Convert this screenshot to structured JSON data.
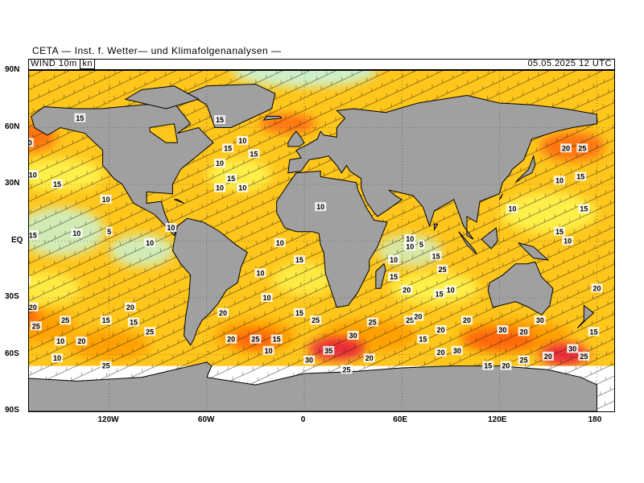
{
  "header": {
    "title": "CETA — Inst. f. Wetter— und Klimafolgenanalysen —",
    "field": "WIND  10m",
    "unit": "kn",
    "datetime": "05.05.2025  12  UTC"
  },
  "axes": {
    "lat_labels": [
      "90N",
      "60N",
      "30N",
      "EQ",
      "30S",
      "60S",
      "90S"
    ],
    "lon_labels": [
      "120W",
      "60W",
      "0",
      "60E",
      "120E",
      "180"
    ]
  },
  "contour_labels": [
    {
      "v": "15",
      "lon": -175,
      "lat": 62
    },
    {
      "v": "20",
      "lon": -170,
      "lat": 52
    },
    {
      "v": "10",
      "lon": -167,
      "lat": 35
    },
    {
      "v": "15",
      "lon": -152,
      "lat": 30
    },
    {
      "v": "15",
      "lon": -167,
      "lat": 3
    },
    {
      "v": "10",
      "lon": -140,
      "lat": 4
    },
    {
      "v": "5",
      "lon": -120,
      "lat": 5
    },
    {
      "v": "10",
      "lon": -95,
      "lat": -1
    },
    {
      "v": "10",
      "lon": -82,
      "lat": 7
    },
    {
      "v": "15",
      "lon": -172,
      "lat": -21
    },
    {
      "v": "20",
      "lon": -167,
      "lat": -35
    },
    {
      "v": "25",
      "lon": -165,
      "lat": -45
    },
    {
      "v": "25",
      "lon": -147,
      "lat": -42
    },
    {
      "v": "15",
      "lon": -122,
      "lat": -42
    },
    {
      "v": "20",
      "lon": -107,
      "lat": -35
    },
    {
      "v": "15",
      "lon": -105,
      "lat": -43
    },
    {
      "v": "25",
      "lon": -95,
      "lat": -48
    },
    {
      "v": "10",
      "lon": -150,
      "lat": -53
    },
    {
      "v": "20",
      "lon": -137,
      "lat": -53
    },
    {
      "v": "25",
      "lon": -122,
      "lat": -66
    },
    {
      "v": "10",
      "lon": -152,
      "lat": -62
    },
    {
      "v": "20",
      "lon": -45,
      "lat": -52
    },
    {
      "v": "25",
      "lon": -30,
      "lat": -52
    },
    {
      "v": "15",
      "lon": -17,
      "lat": -52
    },
    {
      "v": "10",
      "lon": -22,
      "lat": -58
    },
    {
      "v": "20",
      "lon": -50,
      "lat": -38
    },
    {
      "v": "15",
      "lon": -3,
      "lat": -38
    },
    {
      "v": "10",
      "lon": -23,
      "lat": -30
    },
    {
      "v": "10",
      "lon": -15,
      "lat": -1
    },
    {
      "v": "15",
      "lon": -3,
      "lat": -10
    },
    {
      "v": "10",
      "lon": -27,
      "lat": -17
    },
    {
      "v": "25",
      "lon": 7,
      "lat": -42
    },
    {
      "v": "30",
      "lon": 30,
      "lat": -50
    },
    {
      "v": "25",
      "lon": 42,
      "lat": -43
    },
    {
      "v": "35",
      "lon": 15,
      "lat": -58
    },
    {
      "v": "30",
      "lon": 3,
      "lat": -63
    },
    {
      "v": "20",
      "lon": 40,
      "lat": -62
    },
    {
      "v": "25",
      "lon": 26,
      "lat": -68
    },
    {
      "v": "25",
      "lon": 65,
      "lat": -42
    },
    {
      "v": "20",
      "lon": 70,
      "lat": -40
    },
    {
      "v": "15",
      "lon": 73,
      "lat": -52
    },
    {
      "v": "20",
      "lon": 84,
      "lat": -47
    },
    {
      "v": "30",
      "lon": 94,
      "lat": -58
    },
    {
      "v": "20",
      "lon": 84,
      "lat": -59
    },
    {
      "v": "20",
      "lon": 100,
      "lat": -42
    },
    {
      "v": "30",
      "lon": 122,
      "lat": -47
    },
    {
      "v": "20",
      "lon": 135,
      "lat": -48
    },
    {
      "v": "30",
      "lon": 145,
      "lat": -42
    },
    {
      "v": "20",
      "lon": 150,
      "lat": -61
    },
    {
      "v": "25",
      "lon": 135,
      "lat": -63
    },
    {
      "v": "15",
      "lon": 113,
      "lat": -66
    },
    {
      "v": "20",
      "lon": 124,
      "lat": -66
    },
    {
      "v": "30",
      "lon": 165,
      "lat": -57
    },
    {
      "v": "25",
      "lon": 172,
      "lat": -61
    },
    {
      "v": "15",
      "lon": 178,
      "lat": -48
    },
    {
      "v": "20",
      "lon": 180,
      "lat": -25
    },
    {
      "v": "25",
      "lon": 85,
      "lat": -15
    },
    {
      "v": "15",
      "lon": 83,
      "lat": -28
    },
    {
      "v": "10",
      "lon": 90,
      "lat": -26
    },
    {
      "v": "15",
      "lon": 55,
      "lat": -19
    },
    {
      "v": "10",
      "lon": 65,
      "lat": -3
    },
    {
      "v": "10",
      "lon": 55,
      "lat": -10
    },
    {
      "v": "15",
      "lon": 81,
      "lat": -8
    },
    {
      "v": "10",
      "lon": 65,
      "lat": 1
    },
    {
      "v": "5",
      "lon": 72,
      "lat": -2
    },
    {
      "v": "20",
      "lon": 63,
      "lat": -26
    },
    {
      "v": "10",
      "lon": 128,
      "lat": 17
    },
    {
      "v": "15",
      "lon": 157,
      "lat": 5
    },
    {
      "v": "10",
      "lon": 162,
      "lat": 0
    },
    {
      "v": "15",
      "lon": 172,
      "lat": 17
    },
    {
      "v": "10",
      "lon": 157,
      "lat": 32
    },
    {
      "v": "15",
      "lon": 170,
      "lat": 34
    },
    {
      "v": "20",
      "lon": 161,
      "lat": 49
    },
    {
      "v": "25",
      "lon": 171,
      "lat": 49
    },
    {
      "v": "10",
      "lon": 10,
      "lat": 18
    },
    {
      "v": "10",
      "lon": -52,
      "lat": 41
    },
    {
      "v": "15",
      "lon": -47,
      "lat": 49
    },
    {
      "v": "10",
      "lon": -38,
      "lat": 53
    },
    {
      "v": "15",
      "lon": -31,
      "lat": 46
    },
    {
      "v": "10",
      "lon": -52,
      "lat": 28
    },
    {
      "v": "15",
      "lon": -45,
      "lat": 33
    },
    {
      "v": "10",
      "lon": -38,
      "lat": 28
    },
    {
      "v": "15",
      "lon": -52,
      "lat": 64
    },
    {
      "v": "10",
      "lon": -122,
      "lat": 22
    },
    {
      "v": "15",
      "lon": -138,
      "lat": 65
    }
  ],
  "colors": {
    "land": "#a0a0a0",
    "ice": "#ffffff",
    "calm": "#c8f5dc",
    "light": "#fff44f",
    "moderate": "#ffc61c",
    "fresh": "#ff9d00",
    "strong": "#ff6010",
    "gale": "#e81e3c"
  }
}
